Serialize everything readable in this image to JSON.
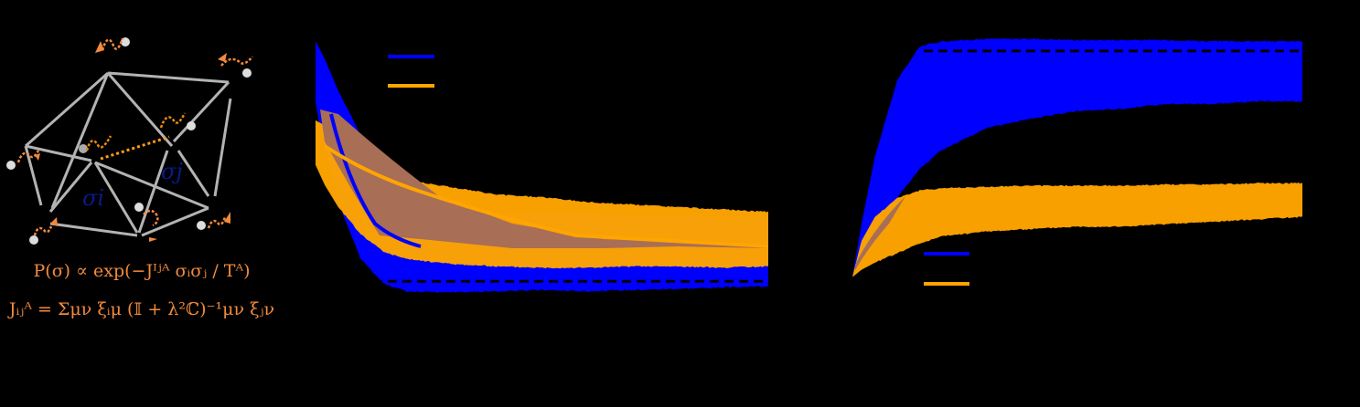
{
  "colors": {
    "background": "#000000",
    "series_a": "#0000ff",
    "series_b": "#ffa500",
    "overlap": "#a86e56",
    "network_edges": "#b3b3b3",
    "network_spins": "#f28a3c",
    "network_highlight": "#e88a10",
    "sigma_label": "#0a1a8c",
    "nodes_white": "#dddddd"
  },
  "network": {
    "sigma_i_label": "σi",
    "sigma_j_label": "σj",
    "formula_1": "P(σ) ∝ exp(−Jᴵʲᴬ σᵢσⱼ / Tᴬ)",
    "formula_2": "Jᵢⱼᴬ = Σμν ξᵢμ (𝕀 + λ²ℂ)⁻¹μν ξⱼν"
  },
  "chart_data": [
    {
      "type": "area",
      "panel": "middle",
      "title": "",
      "xlabel": "",
      "ylabel": "",
      "legend": [
        "series A (blue)",
        "series B (orange)"
      ],
      "legend_position": "upper center",
      "x": [
        0,
        0.02,
        0.05,
        0.1,
        0.15,
        0.2,
        0.3,
        0.4,
        0.5,
        0.6,
        0.7,
        0.8,
        0.9,
        1.0
      ],
      "series": [
        {
          "name": "blue",
          "color": "#0000ff",
          "upper": [
            1.0,
            0.93,
            0.8,
            0.62,
            0.45,
            0.36,
            0.32,
            0.31,
            0.31,
            0.305,
            0.3,
            0.3,
            0.29,
            0.29
          ],
          "lower": [
            0.75,
            0.55,
            0.35,
            0.12,
            0.02,
            -0.01,
            -0.015,
            -0.01,
            -0.005,
            -0.01,
            -0.005,
            0.0,
            0.005,
            0.01
          ]
        },
        {
          "name": "orange",
          "color": "#ffa500",
          "upper": [
            0.68,
            0.66,
            0.62,
            0.54,
            0.49,
            0.44,
            0.41,
            0.38,
            0.37,
            0.35,
            0.34,
            0.33,
            0.32,
            0.31
          ],
          "lower": [
            0.5,
            0.42,
            0.33,
            0.22,
            0.15,
            0.12,
            0.1,
            0.09,
            0.085,
            0.085,
            0.09,
            0.09,
            0.085,
            0.09
          ]
        }
      ],
      "reference_line": {
        "style": "dashed",
        "y": 0.03
      },
      "ylim": [
        -0.05,
        1.0
      ]
    },
    {
      "type": "area",
      "panel": "right",
      "title": "",
      "xlabel": "",
      "ylabel": "",
      "legend": [
        "series A (blue)",
        "series B (orange)"
      ],
      "legend_position": "lower center",
      "x": [
        0,
        0.02,
        0.05,
        0.1,
        0.15,
        0.2,
        0.3,
        0.4,
        0.5,
        0.6,
        0.7,
        0.8,
        0.9,
        1.0
      ],
      "series": [
        {
          "name": "blue",
          "color": "#0000ff",
          "upper": [
            0.0,
            0.22,
            0.5,
            0.82,
            0.96,
            0.98,
            0.99,
            0.99,
            0.985,
            0.985,
            0.985,
            0.98,
            0.98,
            0.98
          ],
          "lower": [
            0.0,
            0.05,
            0.14,
            0.33,
            0.45,
            0.53,
            0.62,
            0.66,
            0.69,
            0.7,
            0.72,
            0.72,
            0.73,
            0.73
          ],
          "reference_y": 0.94
        },
        {
          "name": "orange",
          "color": "#ffa500",
          "upper": [
            0.0,
            0.15,
            0.25,
            0.33,
            0.36,
            0.37,
            0.375,
            0.38,
            0.38,
            0.38,
            0.385,
            0.385,
            0.39,
            0.39
          ],
          "lower": [
            0.0,
            0.03,
            0.06,
            0.1,
            0.14,
            0.17,
            0.19,
            0.2,
            0.21,
            0.21,
            0.22,
            0.23,
            0.24,
            0.25
          ]
        }
      ],
      "ylim": [
        -0.1,
        1.0
      ]
    }
  ]
}
